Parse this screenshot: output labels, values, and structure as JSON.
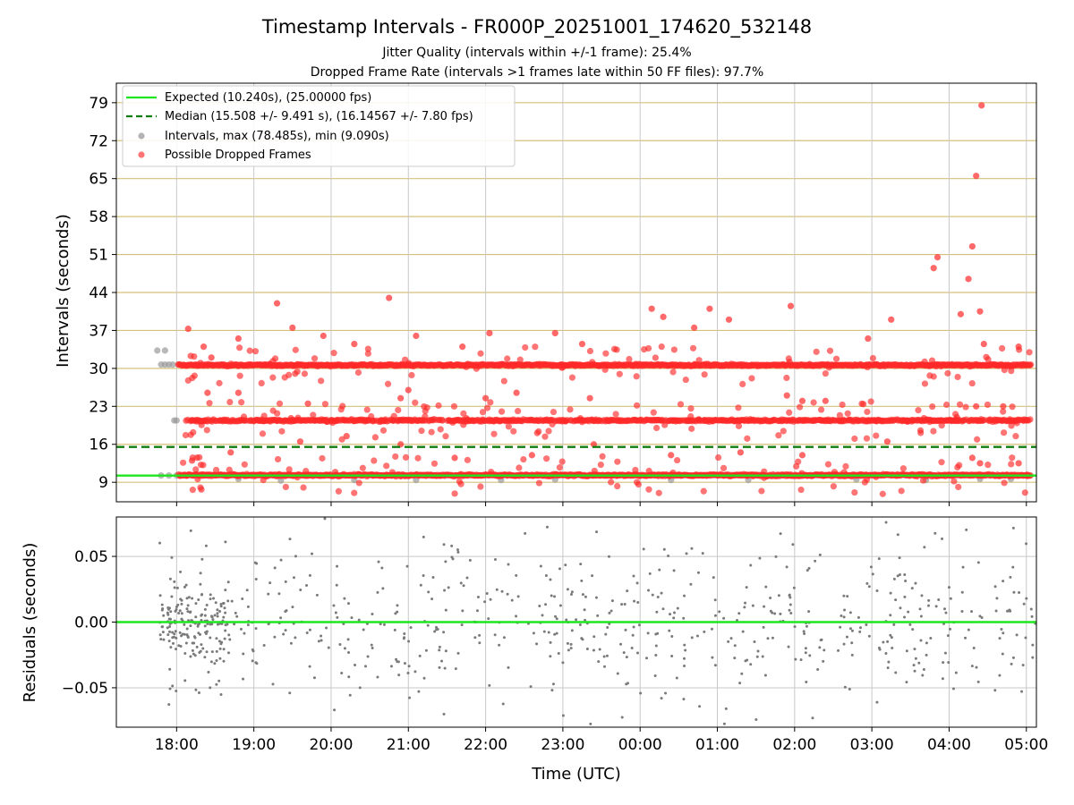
{
  "chart_data": [
    {
      "type": "scatter",
      "title": "Timestamp Intervals - FR000P_20251001_174620_532148",
      "subtitle_lines": [
        "Jitter Quality (intervals within +/-1 frame): 25.4%",
        "Dropped Frame Rate (intervals >1 frames late within 50 FF files): 97.7%"
      ],
      "ylabel": "Intervals (seconds)",
      "ylim": [
        5.4,
        82.6
      ],
      "yticks": [
        9,
        16,
        23,
        30,
        37,
        44,
        51,
        58,
        65,
        72,
        79
      ],
      "grid": true,
      "legend_position": "upper left",
      "legend": [
        {
          "label": "Expected (10.240s), (25.00000 fps)",
          "kind": "line",
          "color": "#1ee61e",
          "dash": "solid"
        },
        {
          "label": "Median (15.508 +/- 9.491 s), (16.14567 +/- 7.80 fps)",
          "kind": "line",
          "color": "#0f7d0f",
          "dash": "dashed"
        },
        {
          "label": "Intervals, max (78.485s), min (9.090s)",
          "kind": "point",
          "color": "#9a9a9a"
        },
        {
          "label": "Possible Dropped Frames",
          "kind": "point",
          "color": "#ff3a3a"
        }
      ],
      "expected_interval": 10.24,
      "median_interval": 15.508,
      "gray_intervals": [
        {
          "t": 17.75,
          "y": 33.3
        },
        {
          "t": 17.85,
          "y": 33.3
        },
        {
          "t": 17.8,
          "y": 30.7
        },
        {
          "t": 17.85,
          "y": 30.7
        },
        {
          "t": 17.9,
          "y": 30.7
        },
        {
          "t": 17.95,
          "y": 30.7
        },
        {
          "t": 17.97,
          "y": 20.4
        },
        {
          "t": 18.0,
          "y": 20.4
        },
        {
          "t": 17.8,
          "y": 10.25
        },
        {
          "t": 17.9,
          "y": 10.25
        },
        {
          "t": 18.0,
          "y": 10.25
        },
        {
          "t": 18.8,
          "y": 9.6
        },
        {
          "t": 19.35,
          "y": 9.3
        },
        {
          "t": 20.3,
          "y": 9.4
        },
        {
          "t": 21.1,
          "y": 9.4
        },
        {
          "t": 22.2,
          "y": 9.4
        },
        {
          "t": 22.9,
          "y": 9.5
        },
        {
          "t": 24.4,
          "y": 9.4
        },
        {
          "t": 25.4,
          "y": 9.4
        },
        {
          "t": 26.8,
          "y": 9.5
        },
        {
          "t": 27.7,
          "y": 9.4
        },
        {
          "t": 28.4,
          "y": 9.6
        },
        {
          "t": 28.8,
          "y": 9.6
        }
      ],
      "dropped_frames": [
        {
          "t": 18.15,
          "y": 37.3
        },
        {
          "t": 18.35,
          "y": 34.0
        },
        {
          "t": 18.45,
          "y": 32.0
        },
        {
          "t": 18.8,
          "y": 35.5
        },
        {
          "t": 19.3,
          "y": 42.0
        },
        {
          "t": 19.5,
          "y": 37.5
        },
        {
          "t": 19.9,
          "y": 36.0
        },
        {
          "t": 20.3,
          "y": 34.5
        },
        {
          "t": 20.75,
          "y": 43.0
        },
        {
          "t": 21.1,
          "y": 36.0
        },
        {
          "t": 21.7,
          "y": 34.0
        },
        {
          "t": 22.05,
          "y": 36.5
        },
        {
          "t": 22.9,
          "y": 36.5
        },
        {
          "t": 23.25,
          "y": 34.5
        },
        {
          "t": 24.15,
          "y": 41.0
        },
        {
          "t": 24.3,
          "y": 39.5
        },
        {
          "t": 24.7,
          "y": 37.5
        },
        {
          "t": 24.9,
          "y": 41.0
        },
        {
          "t": 25.15,
          "y": 39.0
        },
        {
          "t": 25.95,
          "y": 41.5
        },
        {
          "t": 26.95,
          "y": 35.5
        },
        {
          "t": 27.25,
          "y": 39.0
        },
        {
          "t": 27.8,
          "y": 48.5
        },
        {
          "t": 27.85,
          "y": 50.5
        },
        {
          "t": 28.15,
          "y": 40.0
        },
        {
          "t": 28.25,
          "y": 46.5
        },
        {
          "t": 28.3,
          "y": 52.5
        },
        {
          "t": 28.35,
          "y": 65.5
        },
        {
          "t": 28.42,
          "y": 78.5
        },
        {
          "t": 28.4,
          "y": 40.5
        },
        {
          "t": 28.45,
          "y": 34.5
        },
        {
          "t": 28.9,
          "y": 34.0
        },
        {
          "t": 18.4,
          "y": 25.5
        },
        {
          "t": 18.8,
          "y": 25.5
        },
        {
          "t": 19.7,
          "y": 23.5
        },
        {
          "t": 20.9,
          "y": 24.5
        },
        {
          "t": 21.0,
          "y": 26.0
        },
        {
          "t": 22.0,
          "y": 24.5
        },
        {
          "t": 22.4,
          "y": 25.5
        },
        {
          "t": 23.35,
          "y": 24.5
        },
        {
          "t": 25.9,
          "y": 25.0
        },
        {
          "t": 26.1,
          "y": 24.0
        },
        {
          "t": 26.4,
          "y": 24.0
        },
        {
          "t": 28.1,
          "y": 21.0
        },
        {
          "t": 28.35,
          "y": 23.0
        },
        {
          "t": 28.7,
          "y": 23.0
        },
        {
          "t": 18.2,
          "y": 13.0
        },
        {
          "t": 18.7,
          "y": 14.5
        },
        {
          "t": 19.6,
          "y": 16.5
        },
        {
          "t": 20.2,
          "y": 17.5
        },
        {
          "t": 20.9,
          "y": 16.0
        },
        {
          "t": 21.6,
          "y": 13.5
        },
        {
          "t": 22.6,
          "y": 14.0
        },
        {
          "t": 23.4,
          "y": 16.0
        },
        {
          "t": 24.4,
          "y": 14.0
        },
        {
          "t": 25.3,
          "y": 14.5
        },
        {
          "t": 26.1,
          "y": 14.0
        },
        {
          "t": 27.2,
          "y": 16.5
        },
        {
          "t": 28.3,
          "y": 13.5
        },
        {
          "t": 28.4,
          "y": 12.5
        },
        {
          "t": 28.9,
          "y": 12.5
        },
        {
          "t": 29.0,
          "y": 10.3
        }
      ],
      "dropped_frame_bands": [
        {
          "y": 30.6,
          "t_start": 18.02,
          "t_end": 29.05
        },
        {
          "y": 20.4,
          "t_start": 18.1,
          "t_end": 29.05
        },
        {
          "y": 10.3,
          "t_start": 18.02,
          "t_end": 29.05
        }
      ]
    },
    {
      "type": "scatter",
      "ylabel": "Residuals (seconds)",
      "xlabel": "Time (UTC)",
      "ylim": [
        -0.08,
        0.08
      ],
      "yticks": [
        0.05,
        0.0,
        -0.05
      ],
      "ytick_labels": [
        "0.05",
        "0.00",
        "−0.05"
      ],
      "xlim": [
        17.22,
        29.13
      ],
      "xticks": [
        18,
        19,
        20,
        21,
        22,
        23,
        24,
        25,
        26,
        27,
        28,
        29
      ],
      "xtick_labels": [
        "18:00",
        "19:00",
        "20:00",
        "21:00",
        "22:00",
        "23:00",
        "00:00",
        "01:00",
        "02:00",
        "03:00",
        "04:00",
        "05:00"
      ],
      "grid": true,
      "zero_line_color": "#1ee61e",
      "points_color": "#7a7a7a",
      "residuals_spread": 0.045,
      "t_start": 17.78,
      "t_end": 29.13
    }
  ]
}
